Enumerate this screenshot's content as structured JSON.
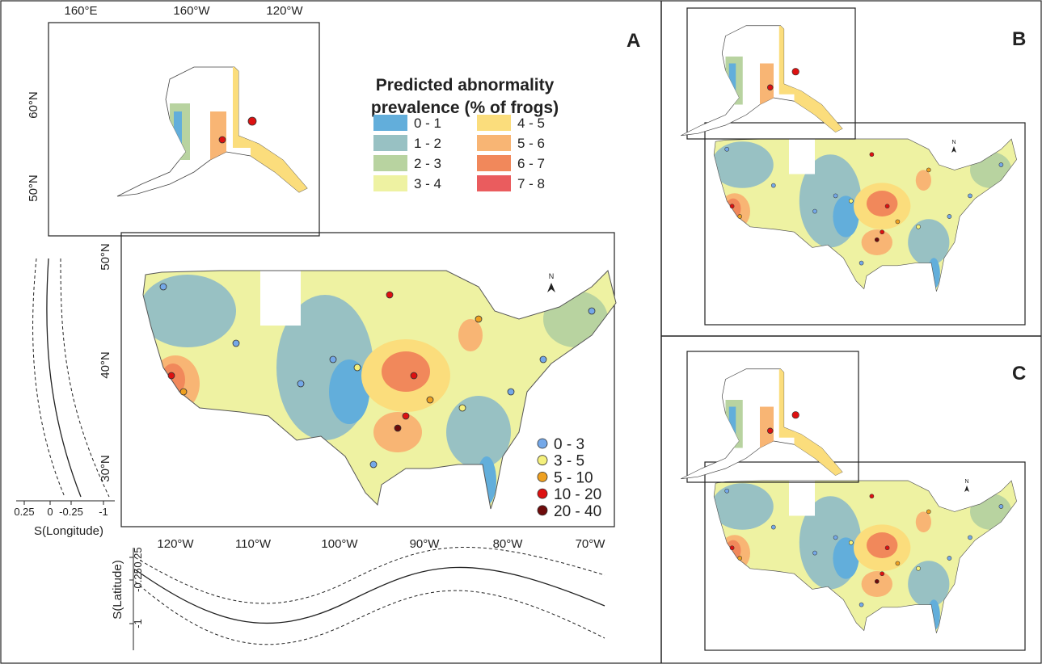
{
  "panel_labels": [
    "A",
    "B",
    "C"
  ],
  "legend": {
    "title_lines": [
      "Predicted abnormality",
      "prevalence (% of frogs)"
    ],
    "classes": [
      {
        "label": "0 - 1",
        "color": "#62aedb"
      },
      {
        "label": "1 - 2",
        "color": "#98c1c3"
      },
      {
        "label": "2 - 3",
        "color": "#b8d3a0"
      },
      {
        "label": "3 - 4",
        "color": "#eef2a2"
      },
      {
        "label": "4 - 5",
        "color": "#fbdd7c"
      },
      {
        "label": "5 - 6",
        "color": "#f8b574"
      },
      {
        "label": "6 - 7",
        "color": "#f1885b"
      },
      {
        "label": "7 - 8",
        "color": "#ea5c5e"
      }
    ]
  },
  "points_legend": {
    "classes": [
      {
        "label": "0 - 3",
        "color": "#74a8e8"
      },
      {
        "label": "3 - 5",
        "color": "#f4f07c"
      },
      {
        "label": "5 - 10",
        "color": "#eea020"
      },
      {
        "label": "10 - 20",
        "color": "#dd1111"
      },
      {
        "label": "20 - 40",
        "color": "#6e0b0b"
      }
    ]
  },
  "inset_axes": {
    "x_labels": [
      "160°E",
      "160°W",
      "120°W"
    ],
    "y_labels": [
      "60°N",
      "50°N"
    ]
  },
  "main_axes": {
    "x_labels": [
      "120°W",
      "110°W",
      "100°W",
      "90°W",
      "80°W",
      "70°W"
    ],
    "y_labels": [
      "50°N",
      "40°N",
      "30°N"
    ]
  },
  "north_label": "N",
  "s_longitude": {
    "label": "S(Longitude)",
    "ticks": [
      "0.25",
      "0",
      "-0.25",
      "-1"
    ]
  },
  "s_latitude": {
    "label": "S(Latitude)",
    "ticks": [
      "0.25",
      "-0.25",
      "-1"
    ]
  }
}
